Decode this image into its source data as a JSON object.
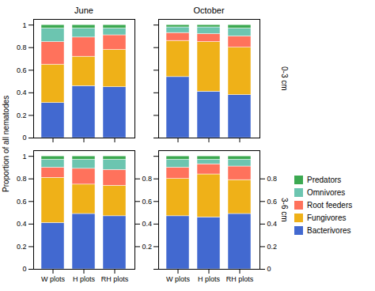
{
  "chart_data": [
    {
      "type": "bar",
      "stacked": true,
      "title": "June",
      "ylabel": "Proportion of all nematodes",
      "categories": [
        "W plots",
        "H plots",
        "RH plots"
      ],
      "series": [
        {
          "name": "Bacterivores",
          "values": [
            0.31,
            0.46,
            0.45
          ]
        },
        {
          "name": "Fungivores",
          "values": [
            0.34,
            0.26,
            0.33
          ]
        },
        {
          "name": "Root feeders",
          "values": [
            0.2,
            0.17,
            0.13
          ]
        },
        {
          "name": "Omnivores",
          "values": [
            0.12,
            0.08,
            0.06
          ]
        },
        {
          "name": "Predators",
          "values": [
            0.03,
            0.03,
            0.03
          ]
        }
      ],
      "ylim": [
        0,
        1.05
      ],
      "yticks": [
        0,
        0.2,
        0.4,
        0.6,
        0.8,
        1
      ],
      "tick_labels": "y"
    },
    {
      "type": "bar",
      "stacked": true,
      "title": "October",
      "annotations": [
        "0-3 cm"
      ],
      "categories": [
        "W plots",
        "H plots",
        "RH plots"
      ],
      "series": [
        {
          "name": "Bacterivores",
          "values": [
            0.54,
            0.41,
            0.38
          ]
        },
        {
          "name": "Fungivores",
          "values": [
            0.32,
            0.44,
            0.42
          ]
        },
        {
          "name": "Root feeders",
          "values": [
            0.07,
            0.07,
            0.1
          ]
        },
        {
          "name": "Omnivores",
          "values": [
            0.05,
            0.06,
            0.07
          ]
        },
        {
          "name": "Predators",
          "values": [
            0.02,
            0.02,
            0.03
          ]
        }
      ],
      "ylim": [
        0,
        1.05
      ],
      "yticks": [
        0,
        0.2,
        0.4,
        0.6,
        0.8,
        1
      ],
      "tick_labels": false
    },
    {
      "type": "bar",
      "stacked": true,
      "categories": [
        "W plots",
        "H plots",
        "RH plots"
      ],
      "series": [
        {
          "name": "Bacterivores",
          "values": [
            0.41,
            0.49,
            0.47
          ]
        },
        {
          "name": "Fungivores",
          "values": [
            0.4,
            0.26,
            0.27
          ]
        },
        {
          "name": "Root feeders",
          "values": [
            0.09,
            0.14,
            0.14
          ]
        },
        {
          "name": "Omnivores",
          "values": [
            0.07,
            0.08,
            0.09
          ]
        },
        {
          "name": "Predators",
          "values": [
            0.03,
            0.03,
            0.03
          ]
        }
      ],
      "ylim": [
        0,
        1.05
      ],
      "yticks": [
        0,
        0.2,
        0.4,
        0.6,
        0.8,
        1
      ],
      "y2lim": [
        0,
        1.05
      ],
      "y2ticks": [
        0.2,
        0.4,
        0.6,
        0.8
      ],
      "tick_labels": true
    },
    {
      "type": "bar",
      "stacked": true,
      "annotations": [
        "3-6 cm"
      ],
      "legend": "right",
      "categories": [
        "W plots",
        "H plots",
        "RH plots"
      ],
      "series": [
        {
          "name": "Bacterivores",
          "values": [
            0.47,
            0.46,
            0.49
          ]
        },
        {
          "name": "Fungivores",
          "values": [
            0.33,
            0.38,
            0.3
          ]
        },
        {
          "name": "Root feeders",
          "values": [
            0.1,
            0.09,
            0.12
          ]
        },
        {
          "name": "Omnivores",
          "values": [
            0.07,
            0.04,
            0.06
          ]
        },
        {
          "name": "Predators",
          "values": [
            0.03,
            0.03,
            0.03
          ]
        }
      ],
      "ylim": [
        0,
        1.05
      ],
      "yticks": [
        0,
        0.2,
        0.4,
        0.6,
        0.8,
        1
      ],
      "y2lim": [
        0,
        1.05
      ],
      "y2ticks": [
        0,
        0.2,
        0.4,
        0.6,
        0.8
      ],
      "tick_labels": "x"
    }
  ]
}
